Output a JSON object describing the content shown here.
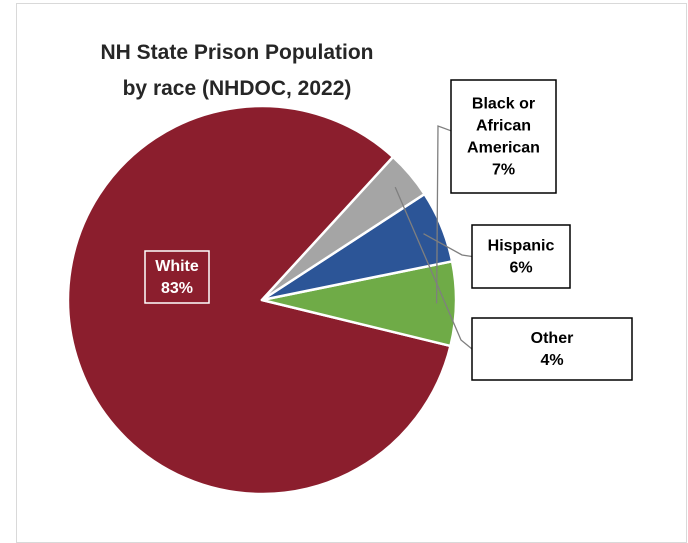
{
  "chart_data": {
    "type": "pie",
    "title_lines": [
      "NH State Prison Population",
      "by race (NHDOC, 2022)"
    ],
    "slices": [
      {
        "label_lines": [
          "White"
        ],
        "percent_label": "83%",
        "value": 83,
        "color": "#8b1e2d",
        "label_color": "#ffffff"
      },
      {
        "label_lines": [
          "Black or",
          "African",
          "American"
        ],
        "percent_label": "7%",
        "value": 7,
        "color": "#6fab47",
        "label_color": "#000000"
      },
      {
        "label_lines": [
          "Hispanic"
        ],
        "percent_label": "6%",
        "value": 6,
        "color": "#2c5597",
        "label_color": "#000000"
      },
      {
        "label_lines": [
          "Other"
        ],
        "percent_label": "4%",
        "value": 4,
        "color": "#a5a5a5",
        "label_color": "#000000"
      }
    ]
  }
}
